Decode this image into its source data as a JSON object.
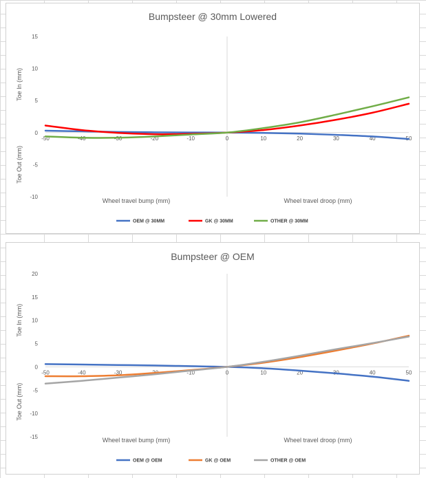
{
  "chart_data": [
    {
      "type": "line",
      "title": "Bumpsteer @ 30mm Lowered",
      "ylabel_upper": "Toe In (mm)",
      "ylabel_lower": "Toe Out (mm)",
      "xlabel_left": "Wheel travel bump (mm)",
      "xlabel_right": "Wheel travel droop (mm)",
      "xlim": [
        -50,
        50
      ],
      "ylim": [
        -10,
        15
      ],
      "xticks": [
        -50,
        -40,
        -30,
        -20,
        -10,
        0,
        10,
        20,
        30,
        40,
        50
      ],
      "yticks": [
        15,
        10,
        5,
        0,
        -5,
        -10
      ],
      "grid": false,
      "legend_position": "bottom",
      "x": [
        -50,
        -40,
        -30,
        -20,
        -10,
        0,
        10,
        20,
        30,
        40,
        50
      ],
      "series": [
        {
          "name": "OEM @ 30MM",
          "color": "#4472c4",
          "values": [
            0.3,
            0.2,
            0.1,
            0.05,
            0.02,
            0,
            -0.05,
            -0.15,
            -0.35,
            -0.6,
            -1.0
          ]
        },
        {
          "name": "GK @ 30MM",
          "color": "#ff0000",
          "values": [
            1.1,
            0.4,
            -0.05,
            -0.25,
            -0.2,
            0,
            0.4,
            1.1,
            2.0,
            3.1,
            4.5
          ]
        },
        {
          "name": "OTHER @ 30MM",
          "color": "#70ad47",
          "values": [
            -0.6,
            -0.8,
            -0.8,
            -0.6,
            -0.3,
            0,
            0.7,
            1.6,
            2.8,
            4.1,
            5.5
          ]
        }
      ]
    },
    {
      "type": "line",
      "title": "Bumpsteer @ OEM",
      "ylabel_upper": "Toe In (mm)",
      "ylabel_lower": "Toe Out (mm)",
      "xlabel_left": "Wheel travel bump (mm)",
      "xlabel_right": "Wheel travel droop (mm)",
      "xlim": [
        -50,
        50
      ],
      "ylim": [
        -15,
        20
      ],
      "xticks": [
        -50,
        -40,
        -30,
        -20,
        -10,
        0,
        10,
        20,
        30,
        40,
        50
      ],
      "yticks": [
        20,
        15,
        10,
        5,
        0,
        -5,
        -10,
        -15
      ],
      "grid": false,
      "legend_position": "bottom",
      "x": [
        -50,
        -40,
        -30,
        -20,
        -10,
        0,
        10,
        20,
        30,
        40,
        50
      ],
      "series": [
        {
          "name": "OEM @ OEM",
          "color": "#4472c4",
          "values": [
            0.6,
            0.5,
            0.4,
            0.3,
            0.15,
            0,
            -0.3,
            -0.8,
            -1.4,
            -2.1,
            -3.0
          ]
        },
        {
          "name": "GK @ OEM",
          "color": "#ed7d31",
          "values": [
            -2.0,
            -2.0,
            -1.8,
            -1.3,
            -0.7,
            0,
            0.9,
            2.1,
            3.5,
            5.0,
            6.7
          ]
        },
        {
          "name": "OTHER @ OEM",
          "color": "#a5a5a5",
          "values": [
            -3.6,
            -3.0,
            -2.3,
            -1.6,
            -0.8,
            0,
            1.1,
            2.4,
            3.8,
            5.1,
            6.5
          ]
        }
      ]
    }
  ]
}
